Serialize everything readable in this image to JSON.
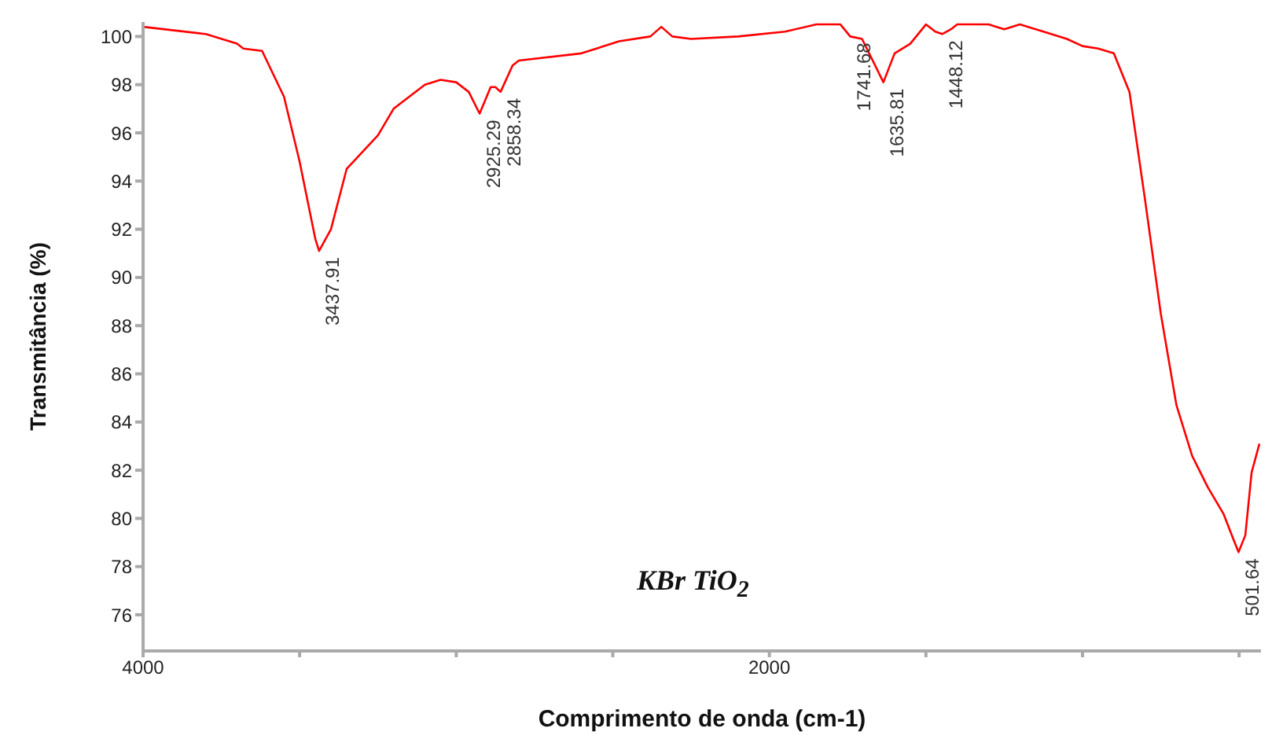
{
  "chart_data": {
    "type": "line",
    "xlabel": "Comprimento de onda (cm-1)",
    "ylabel": "Transmitância (%)",
    "xlim": [
      4000,
      430
    ],
    "ylim": [
      74.5,
      100.6
    ],
    "xticks": [
      4000,
      {
        "value": 3500,
        "label": null
      },
      {
        "value": 3000,
        "label": null
      },
      {
        "value": 2500,
        "label": null
      },
      2000,
      {
        "value": 1500,
        "label": null
      },
      {
        "value": 1000,
        "label": null
      },
      {
        "value": 500,
        "label": null
      }
    ],
    "yticks": [
      76,
      78,
      80,
      82,
      84,
      86,
      88,
      90,
      92,
      94,
      96,
      98,
      100
    ],
    "grid": false,
    "legend": false,
    "marker": "none",
    "line_style": "solid",
    "x": [
      4000,
      3800,
      3700,
      3680,
      3620,
      3550,
      3500,
      3450,
      3437.91,
      3400,
      3350,
      3250,
      3200,
      3100,
      3050,
      3000,
      2960,
      2925.29,
      2890,
      2875,
      2858.34,
      2820,
      2800,
      2600,
      2480,
      2380,
      2345,
      2310,
      2250,
      2100,
      1950,
      1850,
      1773,
      1741.68,
      1704,
      1635.81,
      1600,
      1550,
      1500,
      1470,
      1448.12,
      1420,
      1400,
      1300,
      1250,
      1200,
      1100,
      1050,
      1000,
      950,
      900,
      850,
      800,
      750,
      700,
      650,
      600,
      550,
      520,
      501.64,
      480,
      460,
      435
    ],
    "series": [
      {
        "color": "#ff0000",
        "values": [
          100.4,
          100.1,
          99.7,
          99.5,
          99.4,
          97.5,
          94.8,
          91.6,
          91.1,
          92.0,
          94.5,
          95.9,
          97.0,
          98.0,
          98.2,
          98.1,
          97.7,
          96.8,
          97.9,
          97.9,
          97.7,
          98.8,
          99.0,
          99.3,
          99.8,
          100.0,
          100.4,
          100.0,
          99.9,
          100.0,
          100.2,
          100.5,
          100.5,
          100.0,
          99.9,
          98.1,
          99.3,
          99.7,
          100.5,
          100.2,
          100.1,
          100.3,
          100.5,
          100.5,
          100.3,
          100.5,
          100.1,
          99.9,
          99.6,
          99.5,
          99.3,
          97.7,
          93.2,
          88.5,
          84.7,
          82.6,
          81.3,
          80.2,
          79.2,
          78.6,
          79.3,
          81.9,
          83.1
        ]
      }
    ],
    "annotations": [
      {
        "text": "3437.91",
        "x": 3437.91,
        "y": 91.1
      },
      {
        "text": "2925.29",
        "x": 2925.29,
        "y": 96.8
      },
      {
        "text": "2858.34",
        "x": 2858.34,
        "y": 97.7
      },
      {
        "text": "1741.68",
        "x": 1741.68,
        "y": 100.0
      },
      {
        "text": "1635.81",
        "x": 1635.81,
        "y": 98.1
      },
      {
        "text": "1448.12",
        "x": 1448.12,
        "y": 100.1
      },
      {
        "text": "501.64",
        "x": 501.64,
        "y": 78.6
      },
      "KBr TiO$_{2}$"
    ]
  }
}
